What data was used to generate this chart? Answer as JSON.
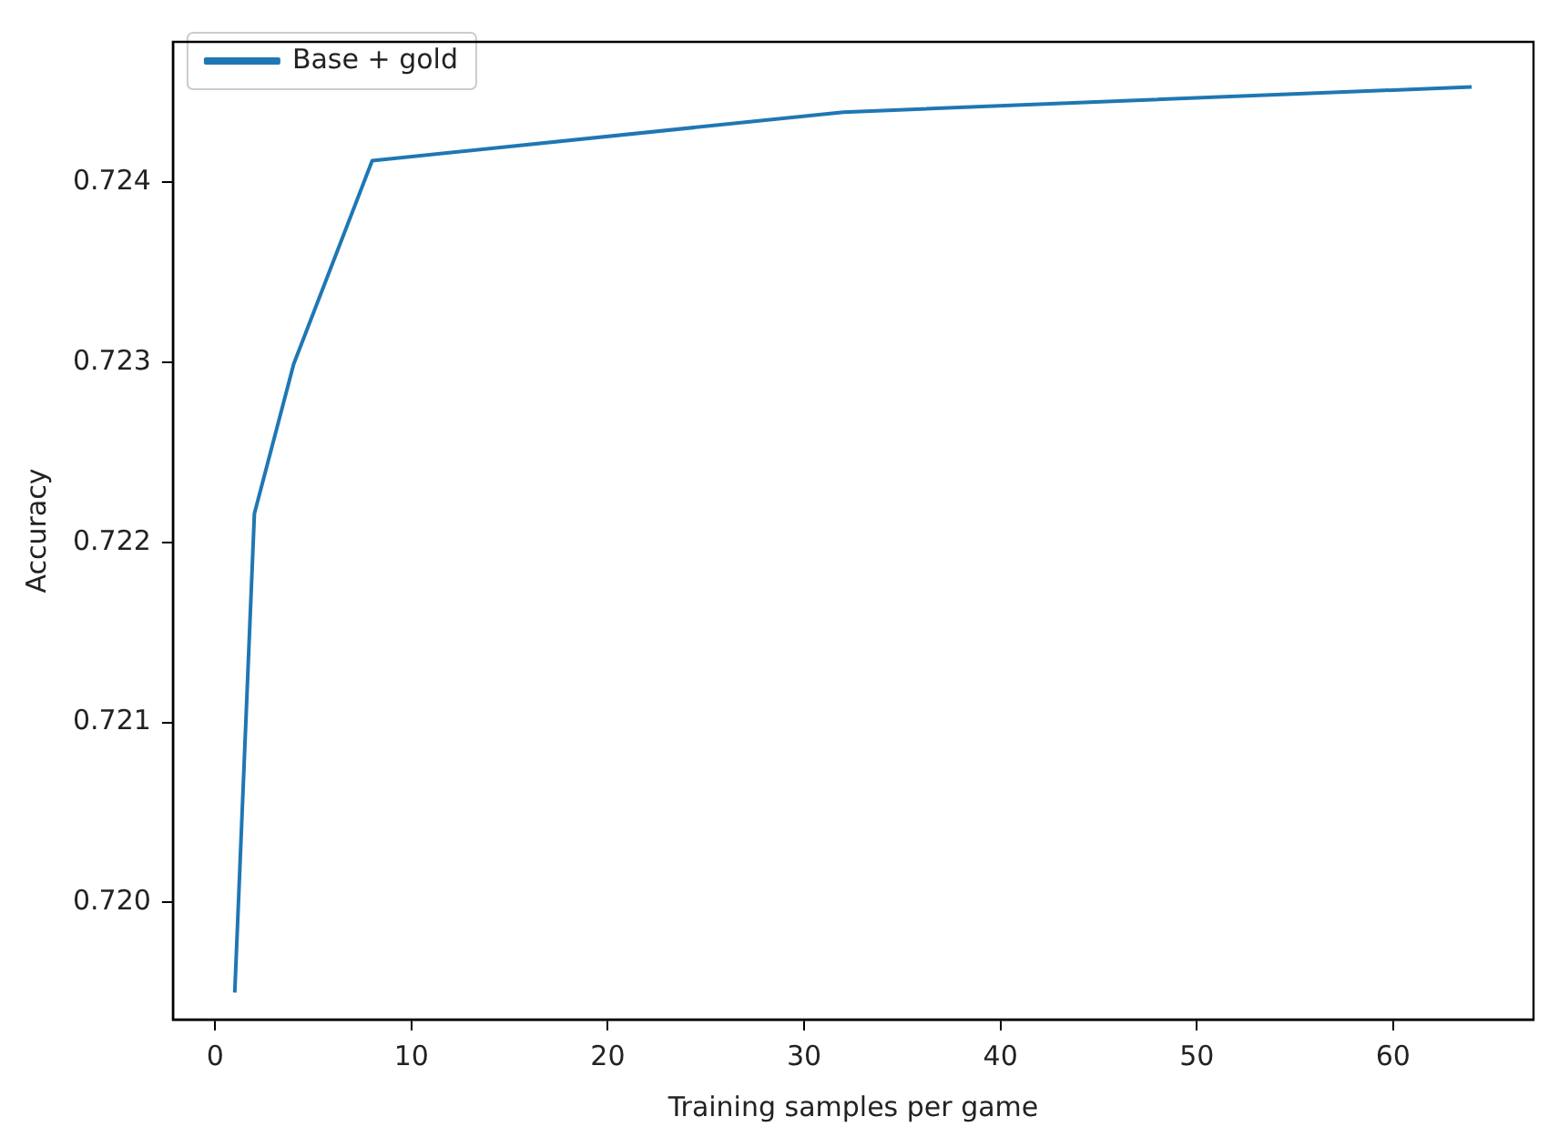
{
  "chart_data": {
    "type": "line",
    "xlabel": "Training samples per game",
    "ylabel": "Accuracy",
    "x": [
      1,
      2,
      4,
      8,
      32,
      64
    ],
    "series": [
      {
        "name": "Base + gold",
        "color": "#1f77b4",
        "values": [
          0.7195,
          0.72216,
          0.72299,
          0.72412,
          0.72439,
          0.72453
        ]
      }
    ],
    "xlim": [
      -2.15,
      67.15
    ],
    "xticks": [
      0,
      10,
      20,
      30,
      40,
      50,
      60
    ],
    "ylim": [
      0.71935,
      0.72478
    ],
    "yticks": [
      {
        "value": 0.72,
        "label": "0.720"
      },
      {
        "value": 0.721,
        "label": "0.721"
      },
      {
        "value": 0.722,
        "label": "0.722"
      },
      {
        "value": 0.723,
        "label": "0.723"
      },
      {
        "value": 0.724,
        "label": "0.724"
      }
    ],
    "grid": false,
    "legend": "top left",
    "marker": "none",
    "line_style": "solid"
  }
}
